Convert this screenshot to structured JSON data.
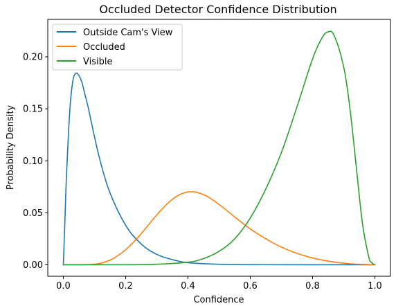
{
  "chart_data": {
    "type": "line",
    "title": "Occluded Detector Confidence Distribution",
    "xlabel": "Confidence",
    "ylabel": "Probability Density",
    "xlim": [
      -0.05,
      1.05
    ],
    "ylim": [
      -0.011,
      0.236
    ],
    "xticks": [
      0.0,
      0.2,
      0.4,
      0.6,
      0.8,
      1.0
    ],
    "xtick_labels": [
      "0.0",
      "0.2",
      "0.4",
      "0.6",
      "0.8",
      "1.0"
    ],
    "yticks": [
      0.0,
      0.05,
      0.1,
      0.15,
      0.2
    ],
    "ytick_labels": [
      "0.00",
      "0.05",
      "0.10",
      "0.15",
      "0.20"
    ],
    "grid": false,
    "legend_position": "top-left",
    "series": [
      {
        "name": "Outside Cam's View",
        "color": "#1f77b4",
        "x": [
          0.0,
          0.005,
          0.01,
          0.02,
          0.03,
          0.04,
          0.05,
          0.06,
          0.07,
          0.08,
          0.1,
          0.12,
          0.15,
          0.2,
          0.25,
          0.3,
          0.35,
          0.4,
          0.5,
          0.6,
          0.8,
          1.0
        ],
        "y": [
          0.0,
          0.042,
          0.085,
          0.145,
          0.176,
          0.184,
          0.182,
          0.175,
          0.163,
          0.151,
          0.123,
          0.098,
          0.069,
          0.038,
          0.02,
          0.01,
          0.005,
          0.002,
          0.0005,
          0.0001,
          0.0,
          0.0
        ]
      },
      {
        "name": "Occluded",
        "color": "#ff7f0e",
        "x": [
          0.0,
          0.05,
          0.1,
          0.15,
          0.2,
          0.25,
          0.3,
          0.35,
          0.4,
          0.45,
          0.5,
          0.55,
          0.6,
          0.65,
          0.7,
          0.75,
          0.8,
          0.85,
          0.9,
          0.95,
          1.0
        ],
        "y": [
          0.0,
          0.0,
          0.0005,
          0.0045,
          0.0145,
          0.03,
          0.048,
          0.063,
          0.07,
          0.0675,
          0.058,
          0.046,
          0.0345,
          0.025,
          0.017,
          0.011,
          0.0065,
          0.0035,
          0.0015,
          0.0005,
          0.0
        ]
      },
      {
        "name": "Visible",
        "color": "#2ca02c",
        "x": [
          0.0,
          0.2,
          0.3,
          0.4,
          0.45,
          0.5,
          0.55,
          0.6,
          0.65,
          0.7,
          0.75,
          0.8,
          0.83,
          0.85,
          0.87,
          0.9,
          0.92,
          0.94,
          0.96,
          0.98,
          0.99,
          1.0
        ],
        "y": [
          0.0,
          0.0,
          0.0005,
          0.0025,
          0.006,
          0.013,
          0.025,
          0.045,
          0.073,
          0.108,
          0.152,
          0.198,
          0.218,
          0.224,
          0.22,
          0.19,
          0.15,
          0.095,
          0.04,
          0.008,
          0.002,
          0.0
        ]
      }
    ]
  }
}
